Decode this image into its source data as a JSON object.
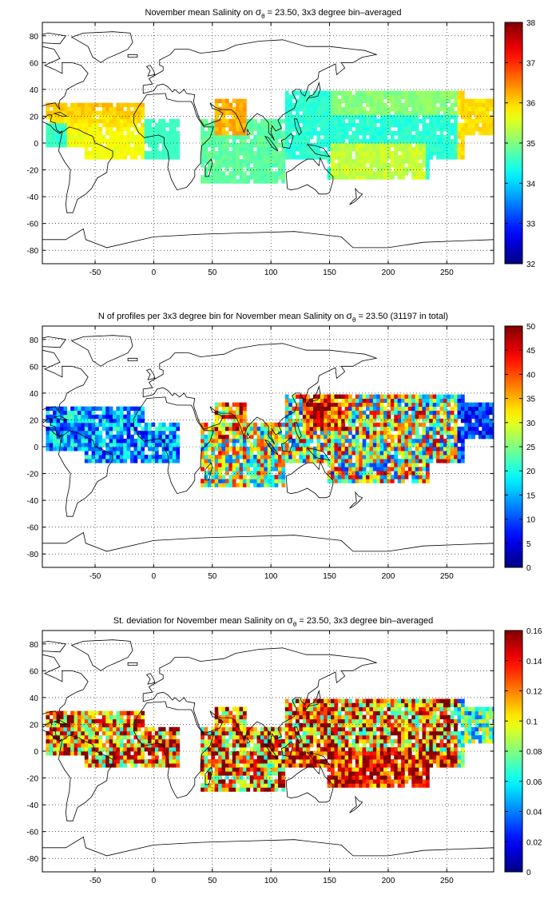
{
  "figure": {
    "panels": [
      {
        "title_pre": "November mean Salinity on ",
        "title_post": " = 23.50, 3x3 degree bin–averaged",
        "colorbar": {
          "min": 32,
          "max": 38,
          "ticks": [
            "32",
            "33",
            "34",
            "35",
            "36",
            "37",
            "38"
          ]
        }
      },
      {
        "title_pre": "N of profiles per 3x3 degree bin for November mean Salinity on ",
        "title_post": " = 23.50 (31197 in total)",
        "colorbar": {
          "min": 0,
          "max": 50,
          "ticks": [
            "0",
            "5",
            "10",
            "15",
            "20",
            "25",
            "30",
            "35",
            "40",
            "45",
            "50"
          ]
        }
      },
      {
        "title_pre": "St. deviation for November mean Salinity on ",
        "title_post": " = 23.50, 3x3 degree bin–averaged",
        "colorbar": {
          "min": 0,
          "max": 0.16,
          "ticks": [
            "0",
            "0.02",
            "0.04",
            "0.06",
            "0.08",
            "0.1",
            "0.12",
            "0.14",
            "0.16"
          ]
        }
      }
    ],
    "sigma_symbol": "σ",
    "sigma_subscript": "θ",
    "xticks": [
      "-50",
      "0",
      "50",
      "100",
      "150",
      "200",
      "250"
    ],
    "yticks": [
      "80",
      "60",
      "40",
      "20",
      "0",
      "-20",
      "-40",
      "-60",
      "-80"
    ],
    "colormap": "jet"
  },
  "chart_data": [
    {
      "type": "heatmap",
      "title": "November mean Salinity on σθ = 23.50, 3x3 degree bin–averaged",
      "xlim": [
        -95,
        290
      ],
      "ylim": [
        -90,
        90
      ],
      "grid": true,
      "colorbar": "right",
      "colormap": "jet",
      "clim": [
        32,
        38
      ],
      "regions": [
        {
          "lon": [
            -90,
            -10
          ],
          "lat": [
            -5,
            25
          ],
          "value": 36.0
        },
        {
          "lon": [
            -60,
            20
          ],
          "lat": [
            -10,
            15
          ],
          "value": 35.6
        },
        {
          "lon": [
            -95,
            -75
          ],
          "lat": [
            -5,
            20
          ],
          "value": 34.6
        },
        {
          "lon": [
            40,
            110
          ],
          "lat": [
            -30,
            15
          ],
          "value": 34.9
        },
        {
          "lon": [
            55,
            75
          ],
          "lat": [
            5,
            28
          ],
          "value": 36.2
        },
        {
          "lon": [
            115,
            260
          ],
          "lat": [
            -10,
            35
          ],
          "value": 34.7
        },
        {
          "lon": [
            150,
            230
          ],
          "lat": [
            -25,
            0
          ],
          "value": 35.4
        },
        {
          "lon": [
            260,
            290
          ],
          "lat": [
            5,
            30
          ],
          "value": 35.9
        }
      ]
    },
    {
      "type": "heatmap",
      "title": "N of profiles per 3x3 degree bin for November mean Salinity on σθ = 23.50 (31197 in total)",
      "xlim": [
        -95,
        290
      ],
      "ylim": [
        -90,
        90
      ],
      "grid": true,
      "colorbar": "right",
      "colormap": "jet",
      "clim": [
        0,
        50
      ],
      "total_profiles": 31197,
      "regions": [
        {
          "lon": [
            -90,
            -10
          ],
          "lat": [
            -5,
            25
          ],
          "value": 15
        },
        {
          "lon": [
            40,
            110
          ],
          "lat": [
            -30,
            15
          ],
          "value": 25
        },
        {
          "lon": [
            55,
            75
          ],
          "lat": [
            5,
            28
          ],
          "value": 40
        },
        {
          "lon": [
            125,
            160
          ],
          "lat": [
            10,
            35
          ],
          "value": 48
        },
        {
          "lon": [
            115,
            260
          ],
          "lat": [
            -10,
            35
          ],
          "value": 28
        },
        {
          "lon": [
            150,
            230
          ],
          "lat": [
            -25,
            0
          ],
          "value": 22
        },
        {
          "lon": [
            260,
            290
          ],
          "lat": [
            5,
            30
          ],
          "value": 8
        }
      ]
    },
    {
      "type": "heatmap",
      "title": "St. deviation for November mean Salinity on σθ = 23.50, 3x3 degree bin–averaged",
      "xlim": [
        -95,
        290
      ],
      "ylim": [
        -90,
        90
      ],
      "grid": true,
      "colorbar": "right",
      "colormap": "jet",
      "clim": [
        0,
        0.16
      ],
      "regions": [
        {
          "lon": [
            -90,
            -10
          ],
          "lat": [
            -5,
            25
          ],
          "value": 0.12
        },
        {
          "lon": [
            40,
            110
          ],
          "lat": [
            -30,
            15
          ],
          "value": 0.14
        },
        {
          "lon": [
            115,
            260
          ],
          "lat": [
            -10,
            35
          ],
          "value": 0.13
        },
        {
          "lon": [
            150,
            230
          ],
          "lat": [
            -25,
            0
          ],
          "value": 0.15
        },
        {
          "lon": [
            260,
            290
          ],
          "lat": [
            5,
            30
          ],
          "value": 0.08
        }
      ]
    }
  ]
}
